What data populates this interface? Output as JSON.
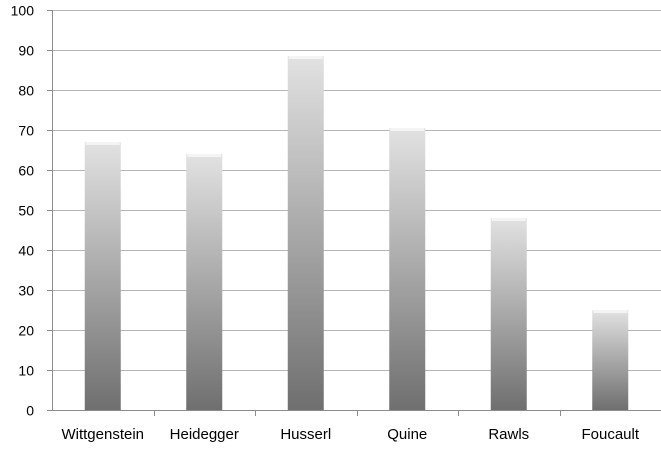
{
  "chart_data": {
    "type": "bar",
    "categories": [
      "Wittgenstein",
      "Heidegger",
      "Husserl",
      "Quine",
      "Rawls",
      "Foucault"
    ],
    "values": [
      67,
      64,
      88.5,
      70.5,
      48,
      25
    ],
    "ylim": [
      0,
      100
    ],
    "yticks": [
      0,
      10,
      20,
      30,
      40,
      50,
      60,
      70,
      80,
      90,
      100
    ],
    "grid": true,
    "legend": "none",
    "colors": {
      "bar_light": "#e2e2e2",
      "bar_dark": "#6f6f6f",
      "grid": "#b5b5b5",
      "axis": "#8c8c8c"
    }
  }
}
